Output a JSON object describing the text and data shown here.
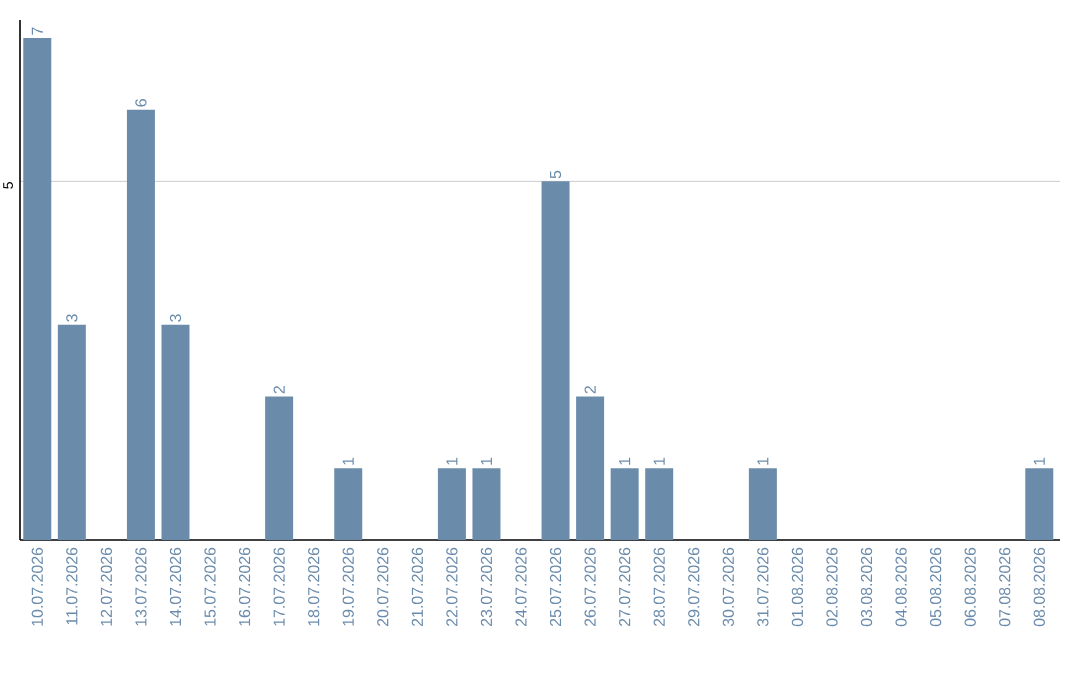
{
  "chart_data": {
    "type": "bar",
    "color": "#6a8caa",
    "categories": [
      "10.07.2026",
      "11.07.2026",
      "12.07.2026",
      "13.07.2026",
      "14.07.2026",
      "15.07.2026",
      "16.07.2026",
      "17.07.2026",
      "18.07.2026",
      "19.07.2026",
      "20.07.2026",
      "21.07.2026",
      "22.07.2026",
      "23.07.2026",
      "24.07.2026",
      "25.07.2026",
      "26.07.2026",
      "27.07.2026",
      "28.07.2026",
      "29.07.2026",
      "30.07.2026",
      "31.07.2026",
      "01.08.2026",
      "02.08.2026",
      "03.08.2026",
      "04.08.2026",
      "05.08.2026",
      "06.08.2026",
      "07.08.2026",
      "08.08.2026"
    ],
    "values": [
      7,
      3,
      0,
      6,
      3,
      0,
      0,
      2,
      0,
      1,
      0,
      0,
      1,
      1,
      0,
      5,
      2,
      1,
      1,
      0,
      0,
      1,
      0,
      0,
      0,
      0,
      0,
      0,
      0,
      1
    ],
    "value_labels": [
      "7",
      "3",
      null,
      "6",
      "3",
      null,
      null,
      "2",
      null,
      "1",
      null,
      null,
      "1",
      "1",
      null,
      "5",
      "2",
      "1",
      "1",
      null,
      null,
      "1",
      null,
      null,
      null,
      null,
      null,
      null,
      null,
      "1"
    ],
    "ylim": [
      0,
      7.25
    ],
    "yticks": [
      5
    ],
    "grid": "y"
  }
}
